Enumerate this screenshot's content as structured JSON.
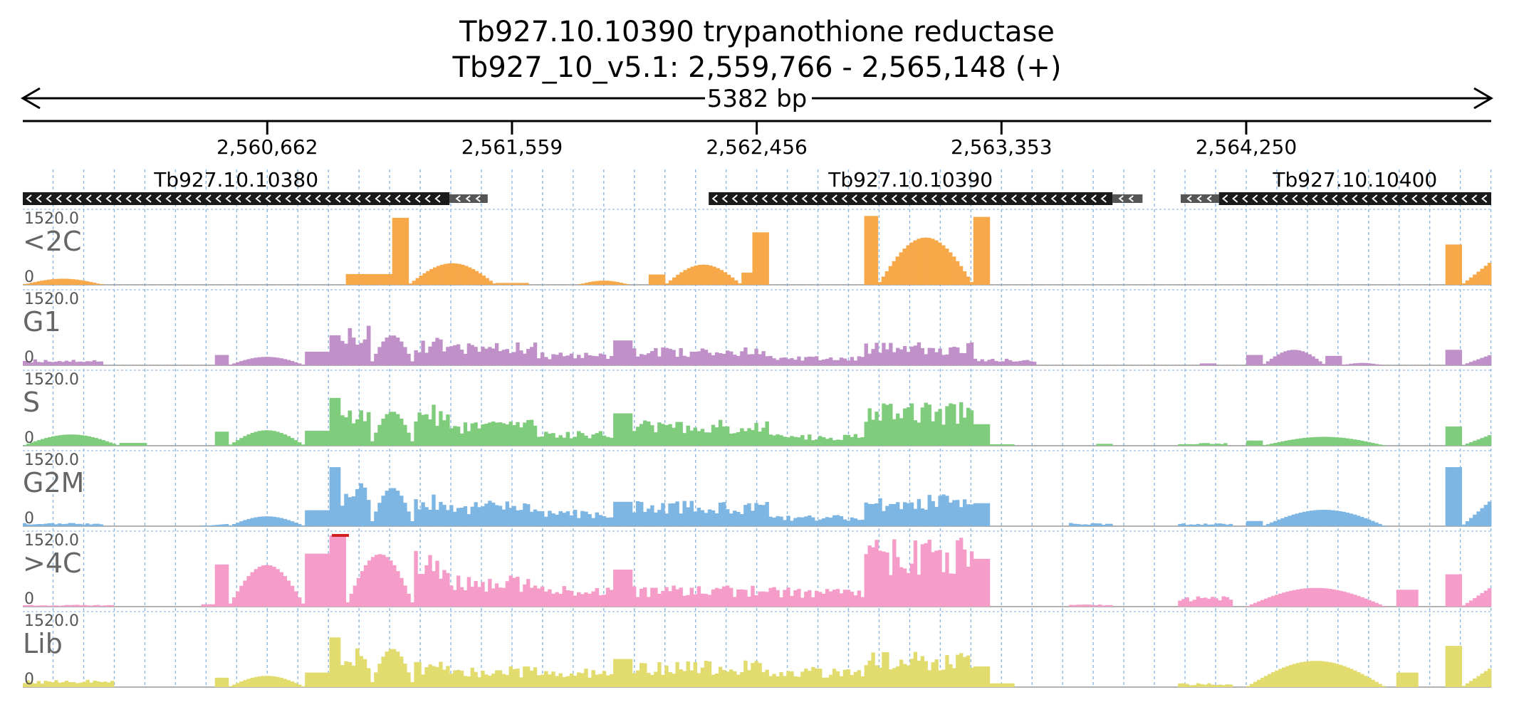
{
  "header": {
    "gene_line": "Tb927.10.10390  trypanothione reductase",
    "locus_line": "Tb927_10_v5.1: 2,559,766 - 2,565,148 (+)",
    "span_label": "5382 bp"
  },
  "colors": {
    "grid": "#8fb8e0",
    "gene_bar": "#1a1a1a",
    "gene_utr": "#555555",
    "overflow_mark": "#d02020"
  },
  "chart_data": {
    "type": "area",
    "title": "Tb927.10.10390  trypanothione reductase",
    "xlim": [
      2559766,
      2565148
    ],
    "x_ticks": [
      {
        "pos": 2560662,
        "label": "2,560,662"
      },
      {
        "pos": 2561559,
        "label": "2,561,559"
      },
      {
        "pos": 2562456,
        "label": "2,562,456"
      },
      {
        "pos": 2563353,
        "label": "2,563,353"
      },
      {
        "pos": 2564250,
        "label": "2,564,250"
      }
    ],
    "genes": [
      {
        "name": "Tb927.10.10380",
        "cds": [
          2559766,
          2561330
        ],
        "utr": [
          2561330,
          2561470
        ],
        "strand": "-"
      },
      {
        "name": "Tb927.10.10390",
        "cds": [
          2562280,
          2563760
        ],
        "utr": [
          2563760,
          2563870
        ],
        "strand": "-"
      },
      {
        "name": "Tb927.10.10400",
        "cds": [
          2564150,
          2565148
        ],
        "utr": [
          2564010,
          2564150
        ],
        "strand": "-"
      }
    ],
    "ylim": [
      0,
      1520
    ],
    "y_max_label": "1520.0",
    "y_min_label": "0",
    "series": [
      {
        "name": "<2C",
        "color": "#f7a94a",
        "shape": [
          {
            "start": 2559766,
            "end": 2560060,
            "mode": "hump",
            "max": 130
          },
          {
            "start": 2560950,
            "end": 2561120,
            "mode": "flat",
            "max": 230
          },
          {
            "start": 2561120,
            "end": 2561180,
            "mode": "flat",
            "max": 1430
          },
          {
            "start": 2561180,
            "end": 2561500,
            "mode": "hump",
            "max": 460
          },
          {
            "start": 2561500,
            "end": 2561620,
            "mode": "flat",
            "max": 40
          },
          {
            "start": 2561800,
            "end": 2561990,
            "mode": "hump",
            "max": 90
          },
          {
            "start": 2562060,
            "end": 2562120,
            "mode": "flat",
            "max": 220
          },
          {
            "start": 2562120,
            "end": 2562400,
            "mode": "hump",
            "max": 430
          },
          {
            "start": 2562400,
            "end": 2562440,
            "mode": "flat",
            "max": 260
          },
          {
            "start": 2562440,
            "end": 2562500,
            "mode": "flat",
            "max": 1120
          },
          {
            "start": 2562850,
            "end": 2562900,
            "mode": "flat",
            "max": 1470
          },
          {
            "start": 2562900,
            "end": 2563250,
            "mode": "hump",
            "max": 1010
          },
          {
            "start": 2563250,
            "end": 2563310,
            "mode": "flat",
            "max": 1450
          },
          {
            "start": 2564980,
            "end": 2565040,
            "mode": "flat",
            "max": 860
          },
          {
            "start": 2565040,
            "end": 2565148,
            "mode": "ramp",
            "max": 500
          }
        ]
      },
      {
        "name": "G1",
        "color": "#c091c8",
        "shape": [
          {
            "start": 2559766,
            "end": 2560060,
            "mode": "jag",
            "max": 130
          },
          {
            "start": 2560470,
            "end": 2560520,
            "mode": "flat",
            "max": 220
          },
          {
            "start": 2560520,
            "end": 2560800,
            "mode": "hump",
            "max": 180
          },
          {
            "start": 2560800,
            "end": 2560890,
            "mode": "flat",
            "max": 290
          },
          {
            "start": 2560890,
            "end": 2560930,
            "mode": "flat",
            "max": 640
          },
          {
            "start": 2560930,
            "end": 2561040,
            "mode": "jag",
            "max": 960
          },
          {
            "start": 2561040,
            "end": 2561200,
            "mode": "hump",
            "max": 640
          },
          {
            "start": 2561200,
            "end": 2561330,
            "mode": "jag",
            "max": 590
          },
          {
            "start": 2561330,
            "end": 2561650,
            "mode": "jag",
            "max": 500
          },
          {
            "start": 2561650,
            "end": 2561930,
            "mode": "jag",
            "max": 280
          },
          {
            "start": 2561930,
            "end": 2562000,
            "mode": "flat",
            "max": 530
          },
          {
            "start": 2562000,
            "end": 2562500,
            "mode": "jag",
            "max": 380
          },
          {
            "start": 2562500,
            "end": 2562850,
            "mode": "jag",
            "max": 200
          },
          {
            "start": 2562850,
            "end": 2563250,
            "mode": "jag",
            "max": 490
          },
          {
            "start": 2563250,
            "end": 2563480,
            "mode": "jag",
            "max": 150
          },
          {
            "start": 2564080,
            "end": 2564140,
            "mode": "flat",
            "max": 40
          },
          {
            "start": 2564250,
            "end": 2564310,
            "mode": "flat",
            "max": 220
          },
          {
            "start": 2564310,
            "end": 2564540,
            "mode": "hump",
            "max": 330
          },
          {
            "start": 2564540,
            "end": 2564600,
            "mode": "flat",
            "max": 200
          },
          {
            "start": 2564600,
            "end": 2564750,
            "mode": "hump",
            "max": 50
          },
          {
            "start": 2564980,
            "end": 2565040,
            "mode": "flat",
            "max": 330
          },
          {
            "start": 2565040,
            "end": 2565148,
            "mode": "ramp",
            "max": 230
          }
        ]
      },
      {
        "name": "S",
        "color": "#7fcc7c",
        "shape": [
          {
            "start": 2559766,
            "end": 2560120,
            "mode": "hump",
            "max": 240
          },
          {
            "start": 2560120,
            "end": 2560220,
            "mode": "flat",
            "max": 60
          },
          {
            "start": 2560470,
            "end": 2560520,
            "mode": "flat",
            "max": 300
          },
          {
            "start": 2560520,
            "end": 2560800,
            "mode": "hump",
            "max": 330
          },
          {
            "start": 2560800,
            "end": 2560890,
            "mode": "flat",
            "max": 320
          },
          {
            "start": 2560890,
            "end": 2560930,
            "mode": "flat",
            "max": 1020
          },
          {
            "start": 2560930,
            "end": 2561040,
            "mode": "jag",
            "max": 850
          },
          {
            "start": 2561040,
            "end": 2561200,
            "mode": "hump",
            "max": 730
          },
          {
            "start": 2561200,
            "end": 2561330,
            "mode": "jag",
            "max": 880
          },
          {
            "start": 2561330,
            "end": 2561650,
            "mode": "jag",
            "max": 560
          },
          {
            "start": 2561650,
            "end": 2561930,
            "mode": "jag",
            "max": 340
          },
          {
            "start": 2561930,
            "end": 2562000,
            "mode": "flat",
            "max": 690
          },
          {
            "start": 2562000,
            "end": 2562500,
            "mode": "jag",
            "max": 560
          },
          {
            "start": 2562500,
            "end": 2562850,
            "mode": "jag",
            "max": 260
          },
          {
            "start": 2562850,
            "end": 2563250,
            "mode": "jag",
            "max": 950
          },
          {
            "start": 2563250,
            "end": 2563310,
            "mode": "flat",
            "max": 460
          },
          {
            "start": 2563310,
            "end": 2563400,
            "mode": "flat",
            "max": 30
          },
          {
            "start": 2563700,
            "end": 2563760,
            "mode": "flat",
            "max": 40
          },
          {
            "start": 2564000,
            "end": 2564180,
            "mode": "jag",
            "max": 60
          },
          {
            "start": 2564250,
            "end": 2564310,
            "mode": "flat",
            "max": 110
          },
          {
            "start": 2564310,
            "end": 2564760,
            "mode": "hump",
            "max": 190
          },
          {
            "start": 2564980,
            "end": 2565040,
            "mode": "flat",
            "max": 410
          },
          {
            "start": 2565040,
            "end": 2565148,
            "mode": "ramp",
            "max": 240
          }
        ]
      },
      {
        "name": "G2M",
        "color": "#7db5e3",
        "shape": [
          {
            "start": 2559766,
            "end": 2560060,
            "mode": "jag",
            "max": 70
          },
          {
            "start": 2560420,
            "end": 2560520,
            "mode": "ramp",
            "max": 50
          },
          {
            "start": 2560520,
            "end": 2560800,
            "mode": "hump",
            "max": 210
          },
          {
            "start": 2560800,
            "end": 2560890,
            "mode": "flat",
            "max": 340
          },
          {
            "start": 2560890,
            "end": 2560930,
            "mode": "flat",
            "max": 1260
          },
          {
            "start": 2560930,
            "end": 2561040,
            "mode": "jag",
            "max": 930
          },
          {
            "start": 2561040,
            "end": 2561200,
            "mode": "hump",
            "max": 820
          },
          {
            "start": 2561200,
            "end": 2561330,
            "mode": "jag",
            "max": 750
          },
          {
            "start": 2561330,
            "end": 2561650,
            "mode": "jag",
            "max": 560
          },
          {
            "start": 2561650,
            "end": 2561930,
            "mode": "jag",
            "max": 350
          },
          {
            "start": 2561930,
            "end": 2562000,
            "mode": "flat",
            "max": 520
          },
          {
            "start": 2562000,
            "end": 2562500,
            "mode": "jag",
            "max": 540
          },
          {
            "start": 2562500,
            "end": 2562850,
            "mode": "jag",
            "max": 240
          },
          {
            "start": 2562850,
            "end": 2563250,
            "mode": "jag",
            "max": 680
          },
          {
            "start": 2563250,
            "end": 2563310,
            "mode": "flat",
            "max": 490
          },
          {
            "start": 2563600,
            "end": 2563760,
            "mode": "jag",
            "max": 70
          },
          {
            "start": 2564000,
            "end": 2564200,
            "mode": "jag",
            "max": 60
          },
          {
            "start": 2564250,
            "end": 2564310,
            "mode": "flat",
            "max": 110
          },
          {
            "start": 2564310,
            "end": 2564760,
            "mode": "hump",
            "max": 350
          },
          {
            "start": 2564980,
            "end": 2565040,
            "mode": "flat",
            "max": 1260
          },
          {
            "start": 2565040,
            "end": 2565148,
            "mode": "ramp",
            "max": 560
          }
        ]
      },
      {
        "name": ">4C",
        "color": "#f59cc8",
        "overflow_at": 2560930,
        "shape": [
          {
            "start": 2559766,
            "end": 2560100,
            "mode": "jag",
            "max": 40
          },
          {
            "start": 2560420,
            "end": 2560470,
            "mode": "flat",
            "max": 50
          },
          {
            "start": 2560470,
            "end": 2560520,
            "mode": "flat",
            "max": 900
          },
          {
            "start": 2560520,
            "end": 2560800,
            "mode": "hump",
            "max": 890
          },
          {
            "start": 2560800,
            "end": 2560890,
            "mode": "flat",
            "max": 1130
          },
          {
            "start": 2560890,
            "end": 2560950,
            "mode": "flat",
            "max": 1520
          },
          {
            "start": 2560950,
            "end": 2561200,
            "mode": "hump",
            "max": 1120
          },
          {
            "start": 2561200,
            "end": 2561330,
            "mode": "jag",
            "max": 1250
          },
          {
            "start": 2561330,
            "end": 2561650,
            "mode": "jag",
            "max": 700
          },
          {
            "start": 2561650,
            "end": 2561930,
            "mode": "jag",
            "max": 440
          },
          {
            "start": 2561930,
            "end": 2562000,
            "mode": "flat",
            "max": 790
          },
          {
            "start": 2562000,
            "end": 2562500,
            "mode": "jag",
            "max": 450
          },
          {
            "start": 2562500,
            "end": 2562850,
            "mode": "jag",
            "max": 420
          },
          {
            "start": 2562850,
            "end": 2563250,
            "mode": "jag",
            "max": 1480
          },
          {
            "start": 2563250,
            "end": 2563310,
            "mode": "flat",
            "max": 1020
          },
          {
            "start": 2563600,
            "end": 2563760,
            "mode": "jag",
            "max": 50
          },
          {
            "start": 2564000,
            "end": 2564200,
            "mode": "jag",
            "max": 230
          },
          {
            "start": 2564250,
            "end": 2564760,
            "mode": "hump",
            "max": 400
          },
          {
            "start": 2564800,
            "end": 2564880,
            "mode": "flat",
            "max": 360
          },
          {
            "start": 2564980,
            "end": 2565040,
            "mode": "flat",
            "max": 690
          },
          {
            "start": 2565040,
            "end": 2565148,
            "mode": "ramp",
            "max": 420
          }
        ]
      },
      {
        "name": "Lib",
        "color": "#e2dc6e",
        "shape": [
          {
            "start": 2559766,
            "end": 2560100,
            "mode": "jag",
            "max": 160
          },
          {
            "start": 2560470,
            "end": 2560520,
            "mode": "flat",
            "max": 200
          },
          {
            "start": 2560520,
            "end": 2560800,
            "mode": "hump",
            "max": 240
          },
          {
            "start": 2560800,
            "end": 2560890,
            "mode": "flat",
            "max": 310
          },
          {
            "start": 2560890,
            "end": 2560930,
            "mode": "flat",
            "max": 1060
          },
          {
            "start": 2560930,
            "end": 2561040,
            "mode": "jag",
            "max": 880
          },
          {
            "start": 2561040,
            "end": 2561200,
            "mode": "hump",
            "max": 820
          },
          {
            "start": 2561200,
            "end": 2561330,
            "mode": "jag",
            "max": 590
          },
          {
            "start": 2561330,
            "end": 2561650,
            "mode": "jag",
            "max": 450
          },
          {
            "start": 2561650,
            "end": 2561930,
            "mode": "jag",
            "max": 430
          },
          {
            "start": 2561930,
            "end": 2562000,
            "mode": "flat",
            "max": 600
          },
          {
            "start": 2562000,
            "end": 2562500,
            "mode": "jag",
            "max": 570
          },
          {
            "start": 2562500,
            "end": 2562850,
            "mode": "jag",
            "max": 440
          },
          {
            "start": 2562850,
            "end": 2563250,
            "mode": "jag",
            "max": 760
          },
          {
            "start": 2563250,
            "end": 2563310,
            "mode": "flat",
            "max": 440
          },
          {
            "start": 2563310,
            "end": 2563400,
            "mode": "flat",
            "max": 80
          },
          {
            "start": 2564000,
            "end": 2564200,
            "mode": "jag",
            "max": 90
          },
          {
            "start": 2564250,
            "end": 2564760,
            "mode": "hump",
            "max": 560
          },
          {
            "start": 2564800,
            "end": 2564880,
            "mode": "flat",
            "max": 310
          },
          {
            "start": 2564980,
            "end": 2565040,
            "mode": "flat",
            "max": 880
          },
          {
            "start": 2565040,
            "end": 2565148,
            "mode": "ramp",
            "max": 420
          }
        ]
      }
    ]
  }
}
